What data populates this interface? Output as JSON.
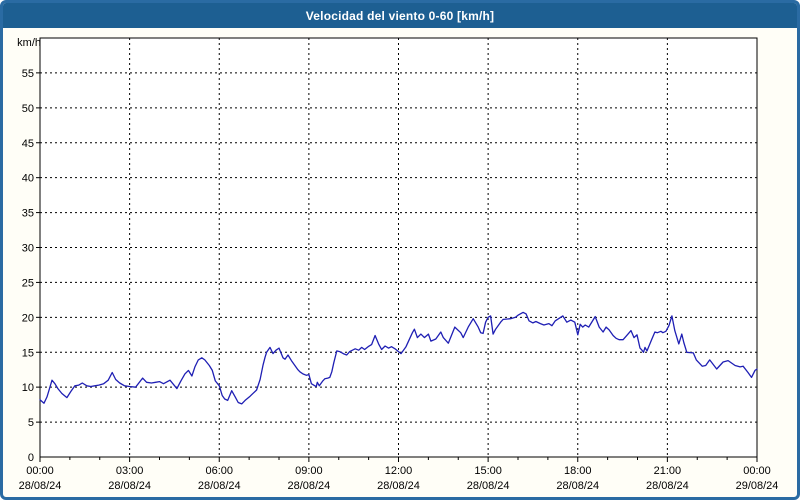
{
  "chart_data": {
    "type": "line",
    "title": "Velocidad del viento 0-60 [km/h]",
    "y_unit_label": "km/h",
    "ylim": [
      0,
      60
    ],
    "y_tick_labels": [
      "0",
      "5",
      "10",
      "15",
      "20",
      "25",
      "30",
      "35",
      "40",
      "45",
      "50",
      "55"
    ],
    "x_range_minutes": 1440,
    "x_tick_interval_minutes": 180,
    "x_ticks": [
      {
        "time": "00:00",
        "date": "28/08/24"
      },
      {
        "time": "03:00",
        "date": "28/08/24"
      },
      {
        "time": "06:00",
        "date": "28/08/24"
      },
      {
        "time": "09:00",
        "date": "28/08/24"
      },
      {
        "time": "12:00",
        "date": "28/08/24"
      },
      {
        "time": "15:00",
        "date": "28/08/24"
      },
      {
        "time": "18:00",
        "date": "28/08/24"
      },
      {
        "time": "21:00",
        "date": "28/08/24"
      },
      {
        "time": "00:00",
        "date": "29/08/24"
      }
    ],
    "grid": "dashed",
    "colors": {
      "frame": "#2a6ba3",
      "titlebar_bg": "#1d5f92",
      "titlebar_text": "#ffffff",
      "plot_bg": "#ffffff",
      "grid": "#000000",
      "line": "#1f1fb4",
      "tick_text": "#000000"
    },
    "series": [
      {
        "name": "wind-speed",
        "points": [
          [
            0,
            8.2
          ],
          [
            8,
            7.7
          ],
          [
            14,
            8.6
          ],
          [
            24,
            11.0
          ],
          [
            30,
            10.5
          ],
          [
            36,
            9.8
          ],
          [
            44,
            9.1
          ],
          [
            54,
            8.5
          ],
          [
            62,
            9.4
          ],
          [
            70,
            10.2
          ],
          [
            78,
            10.3
          ],
          [
            85,
            10.6
          ],
          [
            94,
            10.2
          ],
          [
            102,
            10.1
          ],
          [
            110,
            10.2
          ],
          [
            118,
            10.3
          ],
          [
            128,
            10.5
          ],
          [
            137,
            11.0
          ],
          [
            145,
            12.1
          ],
          [
            152,
            11.1
          ],
          [
            160,
            10.6
          ],
          [
            170,
            10.2
          ],
          [
            180,
            10.1
          ],
          [
            192,
            10.0
          ],
          [
            206,
            11.3
          ],
          [
            214,
            10.7
          ],
          [
            224,
            10.6
          ],
          [
            232,
            10.7
          ],
          [
            240,
            10.8
          ],
          [
            248,
            10.5
          ],
          [
            261,
            11.0
          ],
          [
            275,
            9.8
          ],
          [
            283,
            10.9
          ],
          [
            291,
            11.9
          ],
          [
            298,
            12.4
          ],
          [
            305,
            11.6
          ],
          [
            311,
            12.9
          ],
          [
            318,
            13.9
          ],
          [
            325,
            14.2
          ],
          [
            331,
            13.9
          ],
          [
            340,
            13.1
          ],
          [
            346,
            12.4
          ],
          [
            352,
            10.9
          ],
          [
            360,
            10.2
          ],
          [
            366,
            8.8
          ],
          [
            371,
            8.3
          ],
          [
            377,
            8.1
          ],
          [
            385,
            9.5
          ],
          [
            392,
            8.6
          ],
          [
            398,
            7.8
          ],
          [
            405,
            7.6
          ],
          [
            412,
            8.1
          ],
          [
            422,
            8.7
          ],
          [
            435,
            9.6
          ],
          [
            442,
            11.1
          ],
          [
            448,
            13.2
          ],
          [
            452,
            14.3
          ],
          [
            455,
            15.0
          ],
          [
            462,
            15.7
          ],
          [
            468,
            14.8
          ],
          [
            474,
            15.3
          ],
          [
            480,
            15.6
          ],
          [
            488,
            14.2
          ],
          [
            492,
            14.0
          ],
          [
            498,
            14.6
          ],
          [
            505,
            13.8
          ],
          [
            510,
            13.3
          ],
          [
            518,
            12.5
          ],
          [
            522,
            12.2
          ],
          [
            528,
            11.9
          ],
          [
            535,
            11.7
          ],
          [
            540,
            11.8
          ],
          [
            545,
            10.5
          ],
          [
            552,
            10.2
          ],
          [
            555,
            10.1
          ],
          [
            557,
            10.7
          ],
          [
            561,
            10.2
          ],
          [
            568,
            10.9
          ],
          [
            572,
            11.2
          ],
          [
            578,
            11.3
          ],
          [
            582,
            11.4
          ],
          [
            586,
            12.2
          ],
          [
            590,
            13.5
          ],
          [
            596,
            15.2
          ],
          [
            602,
            15.1
          ],
          [
            609,
            14.8
          ],
          [
            616,
            14.6
          ],
          [
            622,
            15.1
          ],
          [
            633,
            15.5
          ],
          [
            640,
            15.3
          ],
          [
            646,
            15.7
          ],
          [
            652,
            15.4
          ],
          [
            659,
            15.8
          ],
          [
            666,
            16.1
          ],
          [
            673,
            17.4
          ],
          [
            680,
            16.2
          ],
          [
            686,
            15.4
          ],
          [
            693,
            15.9
          ],
          [
            700,
            15.6
          ],
          [
            706,
            15.8
          ],
          [
            713,
            15.5
          ],
          [
            720,
            15.1
          ],
          [
            725,
            14.8
          ],
          [
            735,
            15.8
          ],
          [
            748,
            17.8
          ],
          [
            752,
            18.3
          ],
          [
            758,
            17.1
          ],
          [
            765,
            17.6
          ],
          [
            772,
            17.1
          ],
          [
            780,
            17.6
          ],
          [
            785,
            16.6
          ],
          [
            795,
            16.9
          ],
          [
            805,
            17.9
          ],
          [
            810,
            17.1
          ],
          [
            820,
            16.3
          ],
          [
            833,
            18.6
          ],
          [
            845,
            17.8
          ],
          [
            850,
            17.1
          ],
          [
            860,
            18.6
          ],
          [
            870,
            19.8
          ],
          [
            880,
            18.6
          ],
          [
            885,
            17.8
          ],
          [
            890,
            17.7
          ],
          [
            895,
            19.3
          ],
          [
            900,
            20.0
          ],
          [
            905,
            20.2
          ],
          [
            910,
            17.6
          ],
          [
            915,
            18.3
          ],
          [
            925,
            19.3
          ],
          [
            930,
            19.7
          ],
          [
            945,
            19.8
          ],
          [
            955,
            20.0
          ],
          [
            960,
            20.3
          ],
          [
            970,
            20.7
          ],
          [
            976,
            20.5
          ],
          [
            982,
            19.5
          ],
          [
            990,
            19.2
          ],
          [
            996,
            19.4
          ],
          [
            1005,
            19.1
          ],
          [
            1012,
            18.9
          ],
          [
            1022,
            19.1
          ],
          [
            1028,
            18.8
          ],
          [
            1035,
            19.5
          ],
          [
            1050,
            20.2
          ],
          [
            1058,
            19.3
          ],
          [
            1066,
            19.6
          ],
          [
            1074,
            19.3
          ],
          [
            1080,
            17.5
          ],
          [
            1085,
            19.0
          ],
          [
            1090,
            18.6
          ],
          [
            1095,
            18.9
          ],
          [
            1102,
            18.6
          ],
          [
            1115,
            20.1
          ],
          [
            1123,
            18.6
          ],
          [
            1131,
            17.9
          ],
          [
            1137,
            18.6
          ],
          [
            1143,
            18.2
          ],
          [
            1151,
            17.4
          ],
          [
            1157,
            17.0
          ],
          [
            1163,
            16.8
          ],
          [
            1171,
            16.8
          ],
          [
            1181,
            17.6
          ],
          [
            1187,
            18.1
          ],
          [
            1193,
            17.1
          ],
          [
            1199,
            17.5
          ],
          [
            1205,
            15.6
          ],
          [
            1209,
            15.3
          ],
          [
            1212,
            15.0
          ],
          [
            1215,
            15.7
          ],
          [
            1219,
            15.2
          ],
          [
            1229,
            16.9
          ],
          [
            1235,
            17.9
          ],
          [
            1240,
            17.8
          ],
          [
            1247,
            18.0
          ],
          [
            1251,
            17.8
          ],
          [
            1257,
            18.0
          ],
          [
            1263,
            18.8
          ],
          [
            1269,
            20.2
          ],
          [
            1275,
            18.1
          ],
          [
            1283,
            16.2
          ],
          [
            1289,
            17.6
          ],
          [
            1293,
            16.4
          ],
          [
            1299,
            15.0
          ],
          [
            1312,
            14.9
          ],
          [
            1318,
            13.9
          ],
          [
            1330,
            13.0
          ],
          [
            1337,
            13.1
          ],
          [
            1345,
            13.9
          ],
          [
            1359,
            12.6
          ],
          [
            1372,
            13.6
          ],
          [
            1382,
            13.8
          ],
          [
            1396,
            13.1
          ],
          [
            1406,
            12.9
          ],
          [
            1412,
            13.0
          ],
          [
            1422,
            12.1
          ],
          [
            1429,
            11.4
          ],
          [
            1436,
            12.4
          ],
          [
            1440,
            12.6
          ]
        ]
      }
    ]
  }
}
